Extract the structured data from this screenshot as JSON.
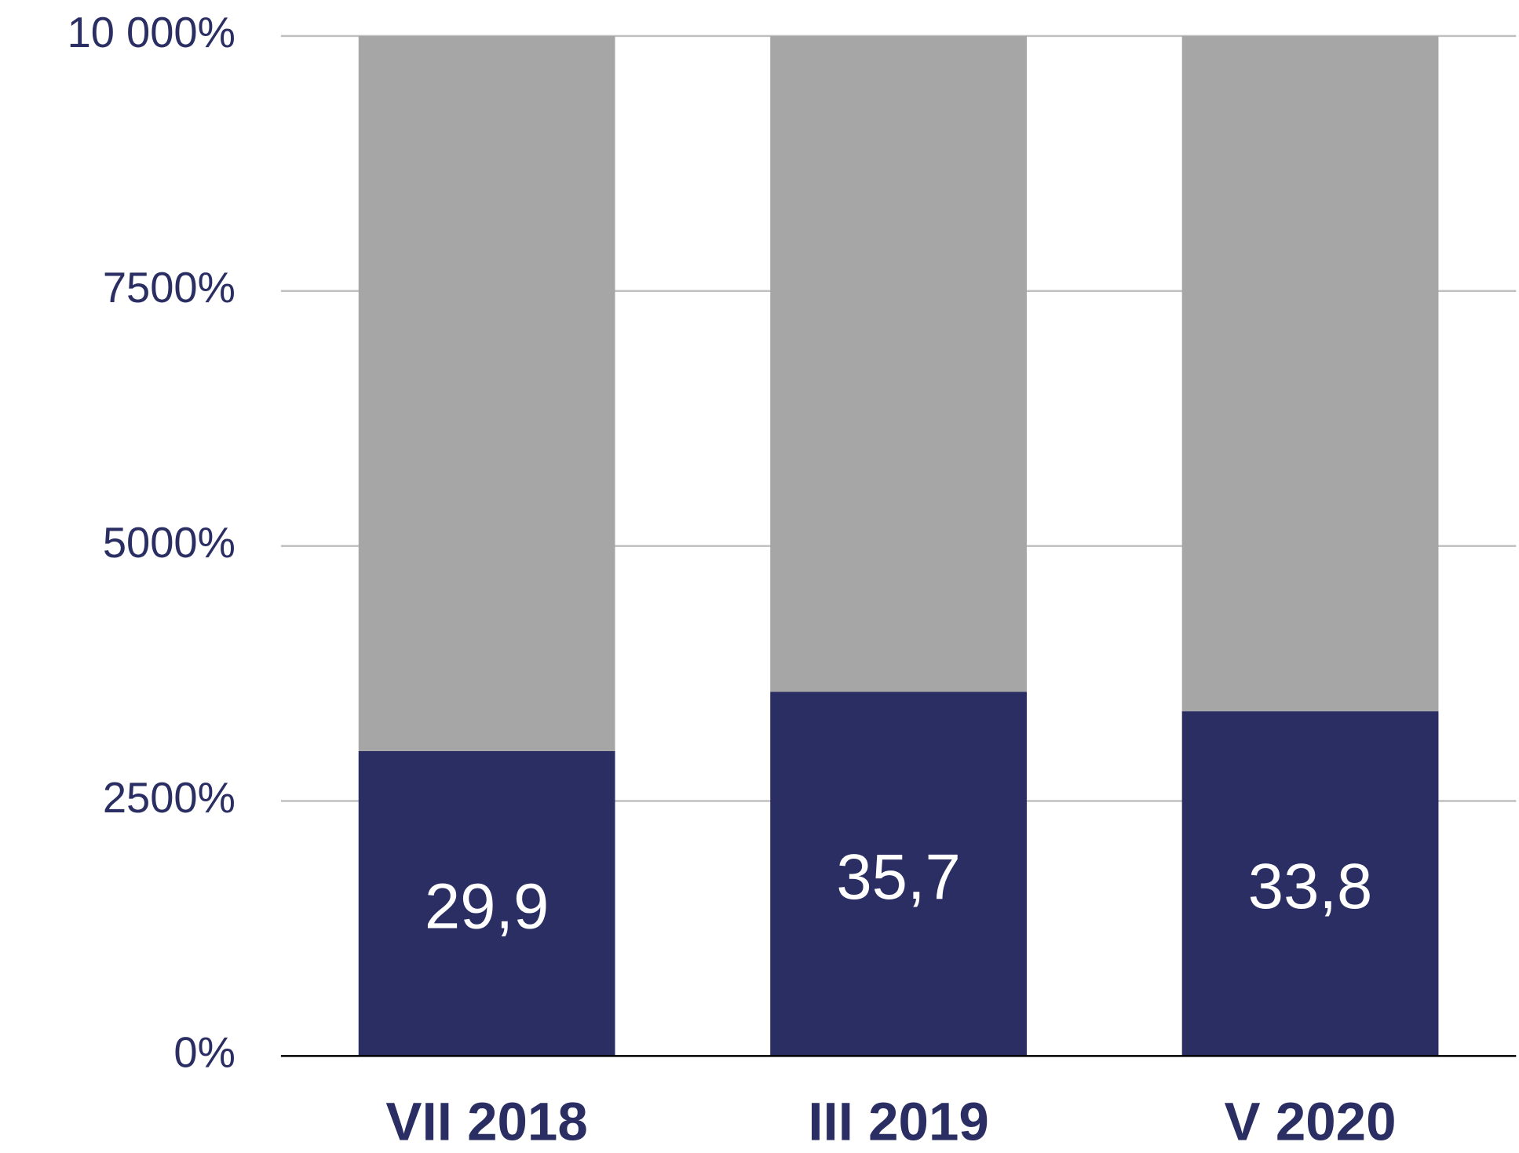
{
  "chart_data": {
    "type": "stacked_bar",
    "categories": [
      "VII 2018",
      "III 2019",
      "V 2020"
    ],
    "series": [
      {
        "color": "#2a2e63",
        "values": [
          2990,
          3570,
          3380
        ],
        "value_labels": [
          "29,9",
          "35,7",
          "33,8"
        ]
      },
      {
        "color": "#a6a6a6",
        "values": [
          7010,
          6430,
          6620
        ]
      }
    ],
    "ylim": [
      0,
      10000
    ],
    "yticks": [
      {
        "value": 0,
        "label": "0%"
      },
      {
        "value": 2500,
        "label": "2500%"
      },
      {
        "value": 5000,
        "label": "5000%"
      },
      {
        "value": 7500,
        "label": "7500%"
      },
      {
        "value": 10000,
        "label": "10 000%"
      }
    ],
    "grid": true
  }
}
